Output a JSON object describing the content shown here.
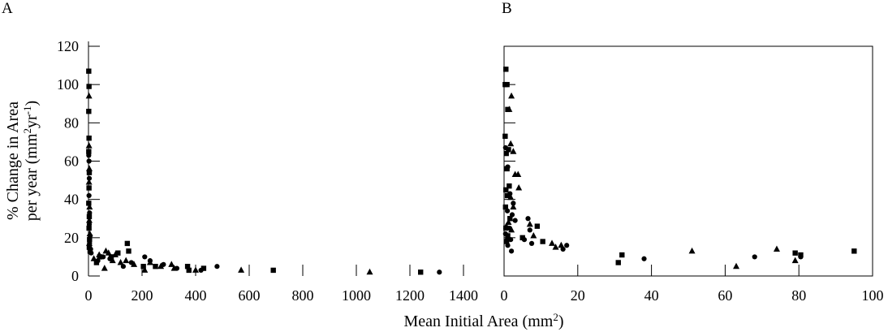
{
  "figure": {
    "ylabel_line1": "% Change in Area",
    "ylabel_line2_prefix": "per year (mm",
    "ylabel_line2_sup1": "2",
    "ylabel_line2_mid": "yr",
    "ylabel_line2_sup2": "-1",
    "ylabel_line2_suffix": ")",
    "xlabel_prefix": "Mean Initial Area (mm",
    "xlabel_sup": "2",
    "xlabel_suffix": ")"
  },
  "chart_data": [
    {
      "type": "scatter",
      "panel_label": "A",
      "xlim": [
        0,
        1400
      ],
      "ylim": [
        0,
        120
      ],
      "x_ticks": [
        0,
        200,
        400,
        600,
        800,
        1000,
        1200,
        1400
      ],
      "y_ticks": [
        0,
        20,
        40,
        60,
        80,
        100,
        120
      ],
      "x_tick_labels": [
        "0",
        "200",
        "400",
        "600",
        "800",
        "1000",
        "1200",
        "1400"
      ],
      "y_tick_labels": [
        "0",
        "20",
        "40",
        "60",
        "80",
        "100",
        "120"
      ],
      "grid": false,
      "series": [
        {
          "marker": "square",
          "points": [
            [
              1,
              107
            ],
            [
              2,
              99
            ],
            [
              1,
              86
            ],
            [
              2,
              72
            ],
            [
              1,
              65
            ],
            [
              3,
              54
            ],
            [
              2,
              46
            ],
            [
              1,
              38
            ],
            [
              3,
              31
            ],
            [
              2,
              25
            ],
            [
              4,
              19
            ],
            [
              3,
              15
            ],
            [
              6,
              13
            ],
            [
              30,
              7
            ],
            [
              42,
              10
            ],
            [
              85,
              10
            ],
            [
              110,
              12
            ],
            [
              145,
              17
            ],
            [
              150,
              13
            ],
            [
              205,
              5
            ],
            [
              250,
              5
            ],
            [
              370,
              5
            ],
            [
              375,
              3
            ],
            [
              430,
              4
            ],
            [
              690,
              3
            ],
            [
              1240,
              2
            ]
          ]
        },
        {
          "marker": "triangle",
          "points": [
            [
              2,
              94
            ],
            [
              2,
              68
            ],
            [
              3,
              56
            ],
            [
              2,
              49
            ],
            [
              4,
              36
            ],
            [
              3,
              29
            ],
            [
              5,
              22
            ],
            [
              3,
              17
            ],
            [
              20,
              9
            ],
            [
              40,
              11
            ],
            [
              60,
              4
            ],
            [
              65,
              13
            ],
            [
              75,
              12
            ],
            [
              90,
              8
            ],
            [
              100,
              11
            ],
            [
              120,
              7
            ],
            [
              140,
              8
            ],
            [
              170,
              6
            ],
            [
              210,
              3
            ],
            [
              230,
              7
            ],
            [
              270,
              5
            ],
            [
              310,
              6
            ],
            [
              320,
              4
            ],
            [
              400,
              3
            ],
            [
              570,
              3
            ],
            [
              1050,
              2
            ]
          ]
        },
        {
          "marker": "circle",
          "points": [
            [
              1,
              63
            ],
            [
              2,
              60
            ],
            [
              3,
              51
            ],
            [
              2,
              42
            ],
            [
              4,
              33
            ],
            [
              3,
              27
            ],
            [
              6,
              21
            ],
            [
              4,
              17
            ],
            [
              8,
              14
            ],
            [
              10,
              12
            ],
            [
              35,
              8
            ],
            [
              55,
              10
            ],
            [
              80,
              9
            ],
            [
              130,
              5
            ],
            [
              160,
              7
            ],
            [
              210,
              10
            ],
            [
              230,
              8
            ],
            [
              280,
              6
            ],
            [
              330,
              4
            ],
            [
              420,
              3
            ],
            [
              480,
              5
            ],
            [
              1310,
              2
            ]
          ]
        }
      ]
    },
    {
      "type": "scatter",
      "panel_label": "B",
      "xlim": [
        0,
        100
      ],
      "ylim": [
        0,
        120
      ],
      "x_ticks": [
        0,
        20,
        40,
        60,
        80,
        100
      ],
      "y_ticks": [
        0,
        20,
        40,
        60,
        80,
        100,
        120
      ],
      "x_tick_labels": [
        "0",
        "20",
        "40",
        "60",
        "80",
        "100"
      ],
      "y_tick_labels": [],
      "grid": false,
      "series": [
        {
          "marker": "square",
          "points": [
            [
              0.5,
              108
            ],
            [
              0.3,
              100
            ],
            [
              0.8,
              100
            ],
            [
              1.0,
              87
            ],
            [
              0.3,
              73
            ],
            [
              1.2,
              66
            ],
            [
              0.6,
              64
            ],
            [
              0.8,
              56
            ],
            [
              1.4,
              47
            ],
            [
              0.5,
              45
            ],
            [
              0.9,
              42
            ],
            [
              0.4,
              36
            ],
            [
              1.6,
              30
            ],
            [
              0.5,
              25
            ],
            [
              1.0,
              21
            ],
            [
              0.7,
              18
            ],
            [
              5.0,
              20
            ],
            [
              9.0,
              26
            ],
            [
              10.5,
              18
            ],
            [
              31.0,
              7
            ],
            [
              32.0,
              11
            ],
            [
              79.0,
              12
            ],
            [
              80.5,
              11
            ],
            [
              95.0,
              13
            ]
          ]
        },
        {
          "marker": "triangle",
          "points": [
            [
              2.0,
              94
            ],
            [
              1.4,
              87
            ],
            [
              1.8,
              69
            ],
            [
              2.5,
              65
            ],
            [
              3.0,
              53
            ],
            [
              3.8,
              53
            ],
            [
              4.0,
              46
            ],
            [
              1.8,
              41
            ],
            [
              2.5,
              36
            ],
            [
              1.2,
              28
            ],
            [
              0.6,
              26
            ],
            [
              2.0,
              24
            ],
            [
              0.9,
              20
            ],
            [
              7.0,
              27
            ],
            [
              8.0,
              21
            ],
            [
              13.0,
              17
            ],
            [
              14.0,
              15
            ],
            [
              15.5,
              16
            ],
            [
              51.0,
              13
            ],
            [
              63.0,
              5
            ],
            [
              74.0,
              14
            ],
            [
              79.0,
              8
            ]
          ]
        },
        {
          "marker": "circle",
          "points": [
            [
              0.4,
              67
            ],
            [
              1.0,
              57
            ],
            [
              1.6,
              43
            ],
            [
              2.5,
              38
            ],
            [
              0.9,
              34
            ],
            [
              2.2,
              32
            ],
            [
              3.0,
              29
            ],
            [
              1.5,
              25
            ],
            [
              0.4,
              22
            ],
            [
              1.8,
              19
            ],
            [
              1.0,
              16
            ],
            [
              2.0,
              13
            ],
            [
              6.5,
              30
            ],
            [
              7.0,
              24
            ],
            [
              5.5,
              19
            ],
            [
              7.5,
              17
            ],
            [
              16.0,
              14
            ],
            [
              17.0,
              16
            ],
            [
              38.0,
              9
            ],
            [
              68.0,
              10
            ],
            [
              80.5,
              10
            ]
          ]
        }
      ]
    }
  ]
}
